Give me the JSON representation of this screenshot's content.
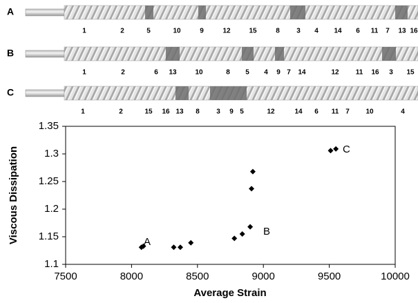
{
  "screws": [
    {
      "label": "A",
      "elements": [
        "1",
        "2",
        "5",
        "10",
        "9",
        "12",
        "15",
        "8",
        "3",
        "4",
        "14",
        "6",
        "11",
        "7",
        "13",
        "16"
      ]
    },
    {
      "label": "B",
      "elements": [
        "1",
        "2",
        "6",
        "13",
        "10",
        "8",
        "5",
        "4",
        "9",
        "7",
        "14",
        "12",
        "11",
        "16",
        "3",
        "15"
      ]
    },
    {
      "label": "C",
      "elements": [
        "1",
        "2",
        "15",
        "16",
        "13",
        "8",
        "3",
        "9",
        "5",
        "12",
        "14",
        "6",
        "11",
        "7",
        "10",
        "4"
      ]
    }
  ],
  "chart_data": {
    "type": "scatter",
    "x_label": "Average Strain",
    "y_label": "Viscous Dissipation",
    "x": [
      8075,
      8090,
      8320,
      8370,
      8450,
      8780,
      8840,
      8900,
      8910,
      8920,
      9510,
      9550
    ],
    "values": [
      1.131,
      1.133,
      1.131,
      1.131,
      1.139,
      1.147,
      1.155,
      1.168,
      1.237,
      1.268,
      1.306,
      1.309
    ],
    "color": "#000000",
    "xlim": [
      7500,
      10000
    ],
    "xticks": [
      7500,
      8000,
      8500,
      9000,
      9500,
      10000
    ],
    "ylim": [
      1.1,
      1.35
    ],
    "yticks": [
      1.1,
      1.15,
      1.2,
      1.25,
      1.3,
      1.35
    ],
    "annotations": [
      "A",
      "B",
      "C"
    ]
  }
}
